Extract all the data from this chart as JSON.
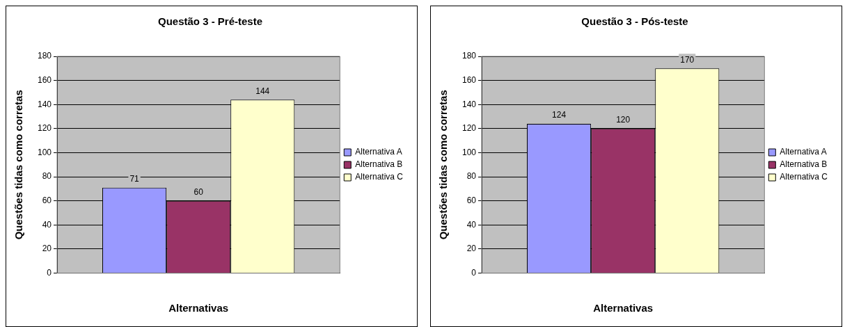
{
  "chart_data": [
    {
      "type": "bar",
      "title": "Questão 3 - Pré-teste",
      "xlabel": "Alternativas",
      "ylabel": "Questões tidas como corretas",
      "categories": [
        null
      ],
      "series": [
        {
          "name": "Alternativa A",
          "color": "#9999ff",
          "values": [
            71
          ]
        },
        {
          "name": "Alternativa B",
          "color": "#993366",
          "values": [
            60
          ]
        },
        {
          "name": "Alternativa C",
          "color": "#ffffcc",
          "values": [
            144
          ]
        }
      ],
      "ylim": [
        0,
        180
      ],
      "yticks": [
        0,
        20,
        40,
        60,
        80,
        100,
        120,
        140,
        160,
        180
      ],
      "grid": "y",
      "legend": "right",
      "data_labels": true
    },
    {
      "type": "bar",
      "title": "Questão 3 - Pós-teste",
      "xlabel": "Alternativas",
      "ylabel": "Questões tidas como corretas",
      "categories": [
        null
      ],
      "series": [
        {
          "name": "Alternativa A",
          "color": "#9999ff",
          "values": [
            124
          ]
        },
        {
          "name": "Alternativa B",
          "color": "#993366",
          "values": [
            120
          ]
        },
        {
          "name": "Alternativa C",
          "color": "#ffffcc",
          "values": [
            170
          ]
        }
      ],
      "ylim": [
        0,
        180
      ],
      "yticks": [
        0,
        20,
        40,
        60,
        80,
        100,
        120,
        140,
        160,
        180
      ],
      "grid": "y",
      "legend": "right",
      "data_labels": true
    }
  ]
}
